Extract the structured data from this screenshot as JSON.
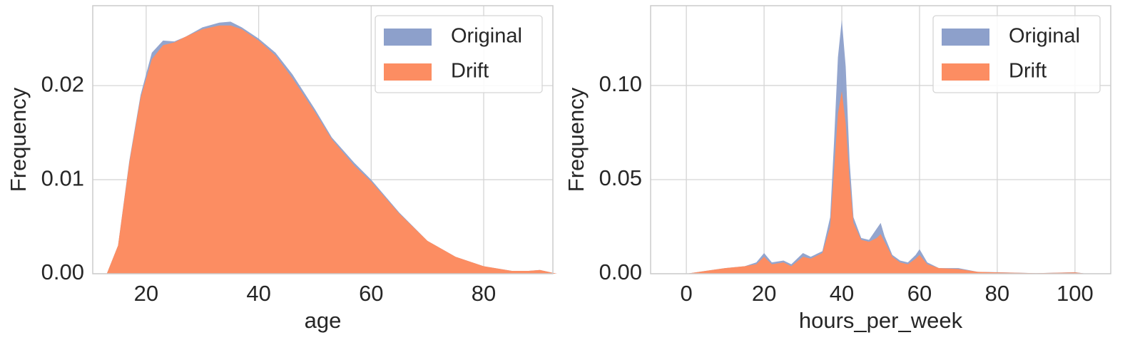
{
  "chart_data": [
    {
      "type": "area",
      "xlabel": "age",
      "ylabel": "Frequency",
      "x": [
        13,
        15,
        17,
        19,
        21,
        23,
        25,
        27,
        30,
        33,
        35,
        37,
        40,
        43,
        46,
        50,
        53,
        57,
        60,
        65,
        70,
        75,
        80,
        85,
        88,
        90,
        93
      ],
      "series": [
        {
          "name": "Original",
          "color": "#8da0cb",
          "values": [
            0,
            0.003,
            0.012,
            0.019,
            0.0235,
            0.0248,
            0.0247,
            0.0252,
            0.0262,
            0.0267,
            0.0268,
            0.0262,
            0.025,
            0.0235,
            0.0212,
            0.0175,
            0.0145,
            0.0118,
            0.01,
            0.0065,
            0.0035,
            0.0018,
            0.0008,
            0.0003,
            0.0003,
            0.0004,
            0
          ]
        },
        {
          "name": "Drift",
          "color": "#fc8d62",
          "values": [
            0,
            0.003,
            0.0118,
            0.0187,
            0.0228,
            0.0243,
            0.0246,
            0.0252,
            0.026,
            0.0264,
            0.0264,
            0.026,
            0.0248,
            0.0232,
            0.0208,
            0.0172,
            0.0143,
            0.0115,
            0.0098,
            0.0064,
            0.0035,
            0.0018,
            0.0008,
            0.0003,
            0.0003,
            0.0004,
            0
          ]
        }
      ],
      "xlim": [
        10.5,
        92.3
      ],
      "ylim": [
        0,
        0.0285
      ],
      "xticks": [
        20,
        40,
        60,
        80
      ],
      "yticks": [
        {
          "value": 0,
          "label": "0.00"
        },
        0.01,
        0.02
      ],
      "grid": true,
      "legend": "upper right"
    },
    {
      "type": "area",
      "xlabel": "hours_per_week",
      "ylabel": "Frequency",
      "x": [
        0,
        5,
        10,
        15,
        18,
        20,
        22,
        25,
        27,
        30,
        32,
        35,
        37,
        38,
        39,
        40,
        41,
        42,
        43,
        45,
        47,
        49,
        50,
        51,
        53,
        55,
        57,
        59,
        60,
        62,
        65,
        70,
        75,
        80,
        90,
        100,
        103
      ],
      "series": [
        {
          "name": "Original",
          "color": "#8da0cb",
          "values": [
            0,
            0.0015,
            0.003,
            0.004,
            0.006,
            0.011,
            0.006,
            0.007,
            0.005,
            0.011,
            0.009,
            0.012,
            0.03,
            0.07,
            0.115,
            0.135,
            0.11,
            0.06,
            0.03,
            0.019,
            0.018,
            0.024,
            0.027,
            0.02,
            0.01,
            0.007,
            0.006,
            0.01,
            0.013,
            0.006,
            0.003,
            0.003,
            0.001,
            0.0008,
            0.0003,
            0.0008,
            0
          ]
        },
        {
          "name": "Drift",
          "color": "#fc8d62",
          "values": [
            0,
            0.0015,
            0.003,
            0.004,
            0.005,
            0.009,
            0.005,
            0.006,
            0.004,
            0.009,
            0.008,
            0.011,
            0.025,
            0.055,
            0.085,
            0.097,
            0.08,
            0.05,
            0.027,
            0.018,
            0.017,
            0.019,
            0.021,
            0.017,
            0.009,
            0.006,
            0.005,
            0.008,
            0.01,
            0.005,
            0.003,
            0.0025,
            0.001,
            0.0007,
            0.0003,
            0.0007,
            0
          ]
        }
      ],
      "xlim": [
        -9.2,
        109.2
      ],
      "ylim": [
        0,
        0.1424
      ],
      "xticks": [
        0,
        20,
        40,
        60,
        80,
        100
      ],
      "yticks": [
        {
          "value": 0,
          "label": "0.00"
        },
        0.05,
        {
          "value": 0.1,
          "label": "0.10"
        }
      ],
      "grid": true,
      "legend": "upper right"
    }
  ]
}
